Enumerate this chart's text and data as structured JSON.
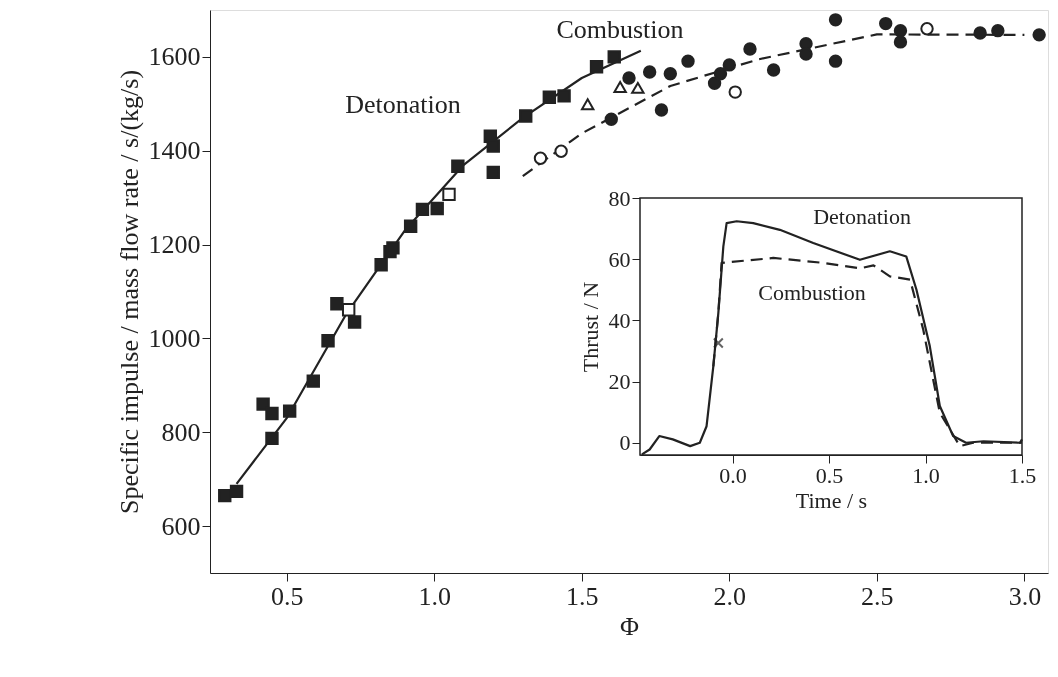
{
  "chart_data": [
    {
      "type": "scatter",
      "xlabel": "Φ",
      "ylabel": "Specific impulse / mass flow rate / s/(kg/s)",
      "xlim": [
        0.24,
        3.08
      ],
      "ylim": [
        500,
        1700
      ],
      "xticks": [
        0.5,
        {
          "value": 1,
          "label": "1.0"
        },
        1.5,
        {
          "value": 2,
          "label": "2.0"
        },
        2.5,
        {
          "value": 3,
          "label": "3.0"
        }
      ],
      "yticks": [
        600,
        800,
        1000,
        1200,
        1400,
        1600
      ],
      "grid": false,
      "series": [
        {
          "type": "line",
          "color": "#222222",
          "line_style": "solid",
          "marker": "none",
          "x": [
            0.33,
            0.5,
            0.7,
            0.9,
            1.1,
            1.3,
            1.5,
            1.7
          ],
          "values": [
            690,
            830,
            1050,
            1230,
            1370,
            1470,
            1555,
            1613
          ]
        },
        {
          "type": "line",
          "color": "#222222",
          "line_style": "dashed",
          "marker": "none",
          "x": [
            1.3,
            1.5,
            1.8,
            2.1,
            2.5,
            3.0
          ],
          "values": [
            1346,
            1437,
            1538,
            1595,
            1648,
            1647
          ]
        },
        {
          "color": "#222222",
          "marker": "square",
          "x": [
            0.29,
            0.33,
            0.42,
            0.45,
            0.45,
            0.51,
            0.59,
            0.64,
            0.67,
            0.73,
            0.82,
            0.85,
            0.86,
            0.92,
            0.96,
            1.01,
            1.08,
            1.19,
            1.2,
            1.2,
            1.31,
            1.39,
            1.44,
            1.55,
            1.61
          ],
          "values": [
            665,
            674,
            860,
            840,
            787,
            845,
            909,
            995,
            1074,
            1035,
            1157,
            1185,
            1193,
            1239,
            1275,
            1277,
            1367,
            1431,
            1410,
            1354,
            1474,
            1514,
            1517,
            1579,
            1600
          ]
        },
        {
          "color": "#ffffff",
          "marker": "square",
          "x": [
            0.71,
            1.05
          ],
          "values": [
            1061,
            1307
          ]
        },
        {
          "color": "#222222",
          "marker": "circle",
          "x": [
            1.6,
            1.66,
            1.73,
            1.8,
            1.86,
            1.77,
            1.95,
            1.97,
            2.0,
            2.07,
            2.15,
            2.26,
            2.26,
            2.36,
            2.36,
            2.53,
            2.58,
            2.58,
            2.85,
            2.91,
            3.05
          ],
          "values": [
            1467,
            1555,
            1568,
            1564,
            1591,
            1487,
            1544,
            1564,
            1583,
            1617,
            1572,
            1628,
            1606,
            1679,
            1591,
            1671,
            1656,
            1632,
            1651,
            1656,
            1647
          ]
        },
        {
          "color": "#ffffff",
          "marker": "circle",
          "x": [
            1.36,
            1.43,
            2.02,
            2.67
          ],
          "values": [
            1384,
            1399,
            1525,
            1660
          ]
        },
        {
          "color": "#ffffff",
          "marker": "triangle",
          "x": [
            1.52,
            1.63,
            1.69
          ],
          "values": [
            1499,
            1536,
            1534
          ]
        }
      ],
      "annotations": [
        "Detonation",
        "Combustion"
      ]
    },
    {
      "type": "line",
      "xlabel": "Time / s",
      "ylabel": "Thrust / N",
      "xlim": [
        -0.48,
        1.5
      ],
      "ylim": [
        -4,
        80
      ],
      "xticks": [
        {
          "value": 0,
          "label": "0.0"
        },
        0.5,
        {
          "value": 1,
          "label": "1.0"
        },
        1.5
      ],
      "yticks": [
        0,
        20,
        40,
        60,
        80
      ],
      "grid": false,
      "series": [
        {
          "color": "#222222",
          "line_style": "solid",
          "x": [
            -0.47,
            -0.43,
            -0.38,
            -0.31,
            -0.22,
            -0.17,
            -0.135,
            -0.1,
            -0.074,
            -0.048,
            -0.031,
            0.021,
            0.107,
            0.245,
            0.418,
            0.66,
            0.815,
            0.9,
            0.953,
            1.022,
            1.074,
            1.143,
            1.21,
            1.3,
            1.49,
            1.5
          ],
          "values": [
            -3.8,
            -2.2,
            2.2,
            1.1,
            -1.1,
            0,
            5.4,
            25,
            42.4,
            64.2,
            71.8,
            72.4,
            71.8,
            69.6,
            65.3,
            59.8,
            62.6,
            60.9,
            50,
            31.6,
            12,
            2.2,
            0,
            0.5,
            0,
            1.1
          ]
        },
        {
          "color": "#222222",
          "line_style": "dashed",
          "x": [
            -0.1,
            -0.074,
            -0.057,
            0.211,
            0.47,
            0.66,
            0.73,
            0.815,
            0.92,
            0.988,
            1.074,
            1.178,
            1.247,
            1.42,
            1.5
          ],
          "values": [
            25,
            42.4,
            58.8,
            60.4,
            58.8,
            57,
            58,
            54.4,
            53.3,
            37,
            9.8,
            -1.1,
            0,
            0,
            0
          ]
        },
        {
          "type": "scatter",
          "color": "#222222",
          "marker": "cross",
          "x": [
            -0.074
          ],
          "values": [
            32.6
          ]
        }
      ],
      "annotations": [
        "Detonation",
        "Combustion"
      ]
    }
  ]
}
